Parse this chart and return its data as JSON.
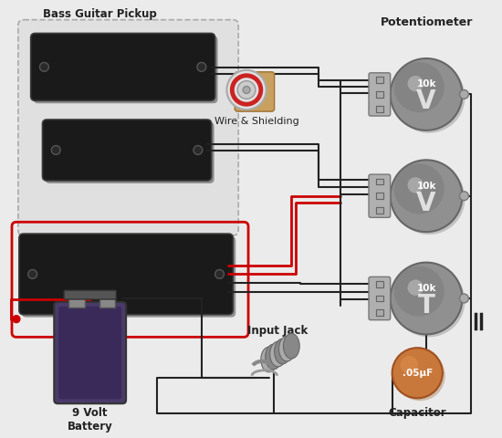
{
  "bg_color": "#ebebeb",
  "labels": {
    "pickup_box": "Bass Guitar Pickup",
    "wire_shielding": "Wire & Shielding",
    "potentiometer": "Potentiometer",
    "battery": "9 Volt\nBattery",
    "input_jack": "Input Jack",
    "capacitor": "Capacitor",
    "cap_value": ".05μF",
    "pot1_val": "10k",
    "pot1_sym": "V",
    "pot2_val": "10k",
    "pot2_sym": "V",
    "pot3_val": "10k",
    "pot3_sym": "T"
  },
  "colors": {
    "bg": "#ebebeb",
    "pickup_fill": "#1a1a1a",
    "pot_gray": "#888888",
    "cap_fill": "#c8783a",
    "wire_black": "#222222",
    "wire_red": "#cc0000",
    "battery_body": "#4a3a6a",
    "battery_terminal": "#888888",
    "text_dark": "#222222"
  }
}
